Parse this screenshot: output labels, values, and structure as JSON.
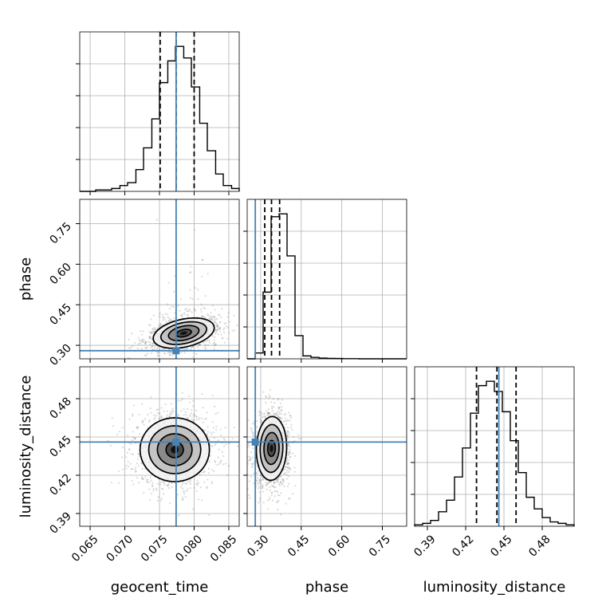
{
  "chart_data": {
    "type": "corner",
    "parameters": [
      "geocent_time",
      "phase",
      "luminosity_distance"
    ],
    "axes": {
      "geocent_time": {
        "label": "geocent_time",
        "range": [
          0.0635,
          0.0865
        ],
        "ticks": [
          0.065,
          0.07,
          0.075,
          0.08,
          0.085
        ],
        "tick_labels": [
          "0.065",
          "0.070",
          "0.075",
          "0.080",
          "0.085"
        ]
      },
      "phase": {
        "label": "phase",
        "range": [
          0.25,
          0.84
        ],
        "ticks": [
          0.3,
          0.45,
          0.6,
          0.75
        ],
        "tick_labels": [
          "0.30",
          "0.45",
          "0.60",
          "0.75"
        ]
      },
      "luminosity_distance": {
        "label": "luminosity_distance",
        "range": [
          0.38,
          0.505
        ],
        "ticks": [
          0.39,
          0.42,
          0.45,
          0.48
        ],
        "tick_labels": [
          "0.39",
          "0.42",
          "0.45",
          "0.48"
        ]
      }
    },
    "truths": {
      "geocent_time": 0.0774,
      "phase": 0.28,
      "luminosity_distance": 0.446
    },
    "quantiles": {
      "geocent_time": [
        0.0751,
        0.0774,
        0.08
      ],
      "phase": [
        0.315,
        0.34,
        0.37
      ],
      "luminosity_distance": [
        0.4285,
        0.4445,
        0.4595
      ]
    },
    "histograms": {
      "geocent_time": {
        "edges": [
          0.0635,
          0.0647,
          0.0658,
          0.067,
          0.0681,
          0.0693,
          0.0704,
          0.0716,
          0.0727,
          0.0739,
          0.075,
          0.0762,
          0.0773,
          0.0785,
          0.0796,
          0.0808,
          0.0819,
          0.0831,
          0.0842,
          0.0854,
          0.0865
        ],
        "counts": [
          0,
          0,
          0.01,
          0.01,
          0.02,
          0.04,
          0.06,
          0.15,
          0.3,
          0.5,
          0.75,
          0.9,
          1.0,
          0.92,
          0.72,
          0.47,
          0.28,
          0.12,
          0.04,
          0.02
        ]
      },
      "phase": {
        "edges": [
          0.25,
          0.2795,
          0.309,
          0.3385,
          0.368,
          0.3975,
          0.427,
          0.4565,
          0.486,
          0.5155,
          0.545,
          0.5745,
          0.604,
          0.6335,
          0.663,
          0.6925,
          0.722,
          0.7515,
          0.781,
          0.8105,
          0.84
        ],
        "counts": [
          0.0,
          0.04,
          0.46,
          0.98,
          1.0,
          0.71,
          0.16,
          0.02,
          0.01,
          0.005,
          0.003,
          0.002,
          0.001,
          0.001,
          0,
          0,
          0,
          0,
          0,
          0
        ]
      },
      "luminosity_distance": {
        "edges": [
          0.38,
          0.38625,
          0.3925,
          0.39875,
          0.405,
          0.41125,
          0.4175,
          0.42375,
          0.43,
          0.43625,
          0.4425,
          0.44875,
          0.455,
          0.46125,
          0.4675,
          0.47375,
          0.48,
          0.48625,
          0.4925,
          0.49875,
          0.505
        ],
        "counts": [
          0.01,
          0.02,
          0.04,
          0.1,
          0.18,
          0.34,
          0.54,
          0.78,
          0.97,
          1.0,
          0.93,
          0.79,
          0.59,
          0.37,
          0.2,
          0.12,
          0.06,
          0.03,
          0.02,
          0.01
        ]
      }
    },
    "pairs": [
      {
        "x": "geocent_time",
        "y": "phase",
        "center": [
          0.0785,
          0.345
        ],
        "sigma": [
          0.0022,
          0.028
        ],
        "rho": 0.35
      },
      {
        "x": "geocent_time",
        "y": "luminosity_distance",
        "center": [
          0.0772,
          0.44
        ],
        "sigma": [
          0.0025,
          0.0125
        ],
        "rho": 0.0
      },
      {
        "x": "phase",
        "y": "luminosity_distance",
        "center": [
          0.34,
          0.441
        ],
        "sigma": [
          0.028,
          0.0125
        ],
        "rho": 0.05
      }
    ],
    "contour_levels_sigma": [
      0.5,
      1.0,
      1.5,
      2.0
    ],
    "grid": true
  }
}
